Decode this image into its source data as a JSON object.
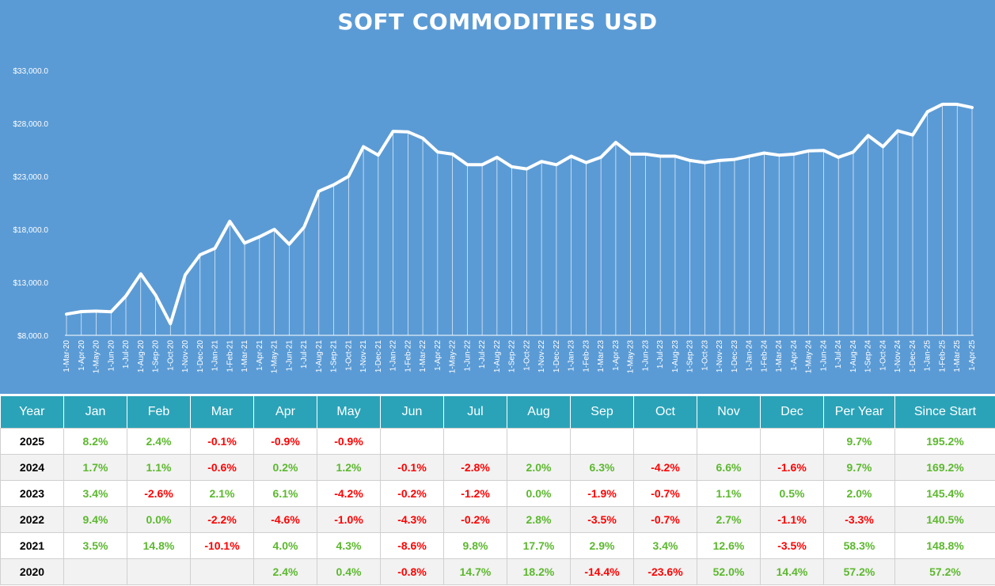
{
  "chart_data": {
    "type": "area",
    "title": "SOFT COMMODITIES USD",
    "y_ticks": [
      "$8,000.0",
      "$13,000.0",
      "$18,000.0",
      "$23,000.0",
      "$28,000.0",
      "$33,000.0"
    ],
    "ylim": [
      8000,
      33000
    ],
    "grid": false,
    "x": [
      "1-Mar-20",
      "1-Apr-20",
      "1-May-20",
      "1-Jun-20",
      "1-Jul-20",
      "1-Aug-20",
      "1-Sep-20",
      "1-Oct-20",
      "1-Nov-20",
      "1-Dec-20",
      "1-Jan-21",
      "1-Feb-21",
      "1-Mar-21",
      "1-Apr-21",
      "1-May-21",
      "1-Jun-21",
      "1-Jul-21",
      "1-Aug-21",
      "1-Sep-21",
      "1-Oct-21",
      "1-Nov-21",
      "1-Dec-21",
      "1-Jan-22",
      "1-Feb-22",
      "1-Mar-22",
      "1-Apr-22",
      "1-May-22",
      "1-Jun-22",
      "1-Jul-22",
      "1-Aug-22",
      "1-Sep-22",
      "1-Oct-22",
      "1-Nov-22",
      "1-Dec-22",
      "1-Jan-23",
      "1-Feb-23",
      "1-Mar-23",
      "1-Apr-23",
      "1-May-23",
      "1-Jun-23",
      "1-Jul-23",
      "1-Aug-23",
      "1-Sep-23",
      "1-Oct-23",
      "1-Nov-23",
      "1-Dec-23",
      "1-Jan-24",
      "1-Feb-24",
      "1-Mar-24",
      "1-Apr-24",
      "1-May-24",
      "1-Jun-24",
      "1-Jul-24",
      "1-Aug-24",
      "1-Sep-24",
      "1-Oct-24",
      "1-Nov-24",
      "1-Dec-24",
      "1-Jan-25",
      "1-Feb-25",
      "1-Mar-25",
      "1-Apr-25"
    ],
    "values": [
      10000,
      10240,
      10280,
      10220,
      11700,
      13800,
      11800,
      9100,
      13700,
      15600,
      16200,
      18750,
      16700,
      17300,
      18000,
      16600,
      18200,
      21600,
      22200,
      23000,
      25800,
      25000,
      27250,
      27200,
      26600,
      25300,
      25100,
      24100,
      24100,
      24800,
      23900,
      23700,
      24400,
      24100,
      24900,
      24300,
      24800,
      26200,
      25100,
      25100,
      24900,
      24900,
      24500,
      24300,
      24500,
      24600,
      24900,
      25200,
      25000,
      25100,
      25400,
      25450,
      24800,
      25300,
      26850,
      25800,
      27300,
      26900,
      29100,
      29800,
      29800,
      29500
    ]
  },
  "table": {
    "headers": [
      "Year",
      "Jan",
      "Feb",
      "Mar",
      "Apr",
      "May",
      "Jun",
      "Jul",
      "Aug",
      "Sep",
      "Oct",
      "Nov",
      "Dec",
      "Per Year",
      "Since Start"
    ],
    "rows": [
      [
        "2025",
        "8.2%",
        "2.4%",
        "-0.1%",
        "-0.9%",
        "-0.9%",
        "",
        "",
        "",
        "",
        "",
        "",
        "",
        "9.7%",
        "195.2%"
      ],
      [
        "2024",
        "1.7%",
        "1.1%",
        "-0.6%",
        "0.2%",
        "1.2%",
        "-0.1%",
        "-2.8%",
        "2.0%",
        "6.3%",
        "-4.2%",
        "6.6%",
        "-1.6%",
        "9.7%",
        "169.2%"
      ],
      [
        "2023",
        "3.4%",
        "-2.6%",
        "2.1%",
        "6.1%",
        "-4.2%",
        "-0.2%",
        "-1.2%",
        "0.0%",
        "-1.9%",
        "-0.7%",
        "1.1%",
        "0.5%",
        "2.0%",
        "145.4%"
      ],
      [
        "2022",
        "9.4%",
        "0.0%",
        "-2.2%",
        "-4.6%",
        "-1.0%",
        "-4.3%",
        "-0.2%",
        "2.8%",
        "-3.5%",
        "-0.7%",
        "2.7%",
        "-1.1%",
        "-3.3%",
        "140.5%"
      ],
      [
        "2021",
        "3.5%",
        "14.8%",
        "-10.1%",
        "4.0%",
        "4.3%",
        "-8.6%",
        "9.8%",
        "17.7%",
        "2.9%",
        "3.4%",
        "12.6%",
        "-3.5%",
        "58.3%",
        "148.8%"
      ],
      [
        "2020",
        "",
        "",
        "",
        "2.4%",
        "0.4%",
        "-0.8%",
        "14.7%",
        "18.2%",
        "-14.4%",
        "-23.6%",
        "52.0%",
        "14.4%",
        "57.2%",
        "57.2%"
      ]
    ]
  },
  "colors": {
    "chart_background": "#5b9bd5",
    "line": "#ffffff",
    "header_background": "#2aa3b8",
    "positive": "#5cb82e",
    "negative": "#ff0000"
  }
}
